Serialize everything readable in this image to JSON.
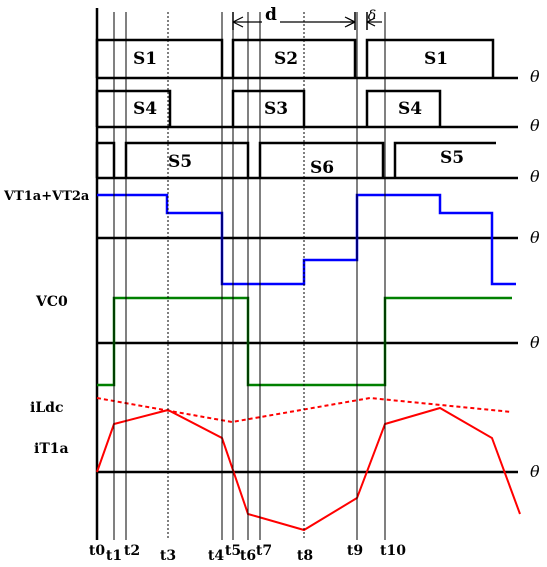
{
  "dimension_labels": {
    "d": "d",
    "delta": "δ"
  },
  "axis_symbol": "θ",
  "switch_rows": [
    {
      "labels": [
        "S1",
        "S2",
        "S1"
      ]
    },
    {
      "labels": [
        "S4",
        "S3",
        "S4"
      ]
    },
    {
      "labels": [
        "S5",
        "S6",
        "S5"
      ]
    }
  ],
  "signals": {
    "vt": "VT1a+VT2a",
    "vc": "VC0",
    "ildc": "iLdc",
    "it": "iT1a"
  },
  "time_labels": [
    "t0",
    "t1",
    "t2",
    "t3",
    "t4",
    "t5",
    "t6",
    "t7",
    "t8",
    "t9",
    "t10"
  ],
  "colors": {
    "axis": "#000000",
    "vt_trace": "#0000ff",
    "vc_trace": "#008000",
    "current_trace": "#ff0000"
  }
}
